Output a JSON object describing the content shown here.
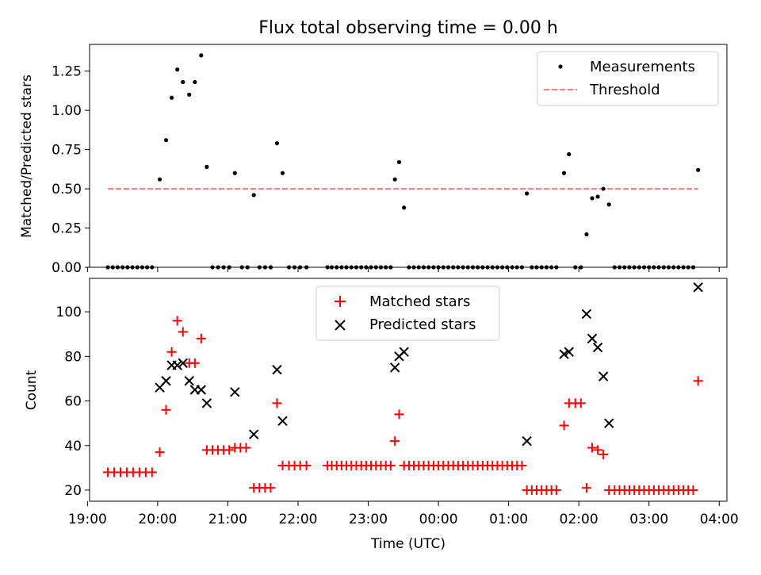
{
  "chart_data": {
    "title": "Flux total observing time = 0.00 h",
    "xlabel": "Time (UTC)",
    "xlim": [
      19.03,
      28.11
    ],
    "x_ticks": [
      {
        "value": 19,
        "label": "19:00"
      },
      {
        "value": 20,
        "label": "20:00"
      },
      {
        "value": 21,
        "label": "21:00"
      },
      {
        "value": 22,
        "label": "22:00"
      },
      {
        "value": 23,
        "label": "23:00"
      },
      {
        "value": 24,
        "label": "00:00"
      },
      {
        "value": 25,
        "label": "01:00"
      },
      {
        "value": 26,
        "label": "02:00"
      },
      {
        "value": 27,
        "label": "03:00"
      },
      {
        "value": 28,
        "label": "04:00"
      }
    ],
    "top_panel": {
      "type": "scatter",
      "ylabel": "Matched/Predicted stars",
      "ylim": [
        0,
        1.42
      ],
      "y_ticks": [
        "0.00",
        "0.25",
        "0.50",
        "0.75",
        "1.00",
        "1.25"
      ],
      "legend": {
        "position": "upper right",
        "entries": [
          "Measurements",
          "Threshold"
        ]
      },
      "threshold": {
        "name": "Threshold",
        "value": 0.5,
        "x_range": [
          19.29,
          27.7
        ],
        "color": "#ff8080"
      },
      "measurements": {
        "name": "Measurements",
        "color": "#000000",
        "points": [
          [
            19.29,
            0
          ],
          [
            19.36,
            0
          ],
          [
            19.43,
            0
          ],
          [
            19.5,
            0
          ],
          [
            19.57,
            0
          ],
          [
            19.64,
            0
          ],
          [
            19.71,
            0
          ],
          [
            19.78,
            0
          ],
          [
            19.85,
            0
          ],
          [
            19.92,
            0
          ],
          [
            20.03,
            0.56
          ],
          [
            20.12,
            0.81
          ],
          [
            20.2,
            1.08
          ],
          [
            20.28,
            1.26
          ],
          [
            20.36,
            1.18
          ],
          [
            20.45,
            1.1
          ],
          [
            20.53,
            1.18
          ],
          [
            20.62,
            1.35
          ],
          [
            20.7,
            0.64
          ],
          [
            20.78,
            0
          ],
          [
            20.86,
            0
          ],
          [
            20.94,
            0
          ],
          [
            21.02,
            0
          ],
          [
            21.1,
            0.6
          ],
          [
            21.2,
            0
          ],
          [
            21.28,
            0
          ],
          [
            21.37,
            0.46
          ],
          [
            21.45,
            0
          ],
          [
            21.53,
            0
          ],
          [
            21.61,
            0
          ],
          [
            21.7,
            0.79
          ],
          [
            21.78,
            0.6
          ],
          [
            21.87,
            0
          ],
          [
            21.95,
            0
          ],
          [
            22.03,
            0
          ],
          [
            22.12,
            0
          ],
          [
            22.42,
            0
          ],
          [
            22.48,
            0
          ],
          [
            22.55,
            0
          ],
          [
            22.62,
            0
          ],
          [
            22.69,
            0
          ],
          [
            22.76,
            0
          ],
          [
            22.83,
            0
          ],
          [
            22.9,
            0
          ],
          [
            22.97,
            0
          ],
          [
            23.04,
            0
          ],
          [
            23.11,
            0
          ],
          [
            23.18,
            0
          ],
          [
            23.25,
            0
          ],
          [
            23.32,
            0
          ],
          [
            23.38,
            0.56
          ],
          [
            23.44,
            0.67
          ],
          [
            23.51,
            0.38
          ],
          [
            23.58,
            0
          ],
          [
            23.65,
            0
          ],
          [
            23.72,
            0
          ],
          [
            23.79,
            0
          ],
          [
            23.86,
            0
          ],
          [
            23.93,
            0
          ],
          [
            24.0,
            0
          ],
          [
            24.07,
            0
          ],
          [
            24.14,
            0
          ],
          [
            24.21,
            0
          ],
          [
            24.28,
            0
          ],
          [
            24.35,
            0
          ],
          [
            24.42,
            0
          ],
          [
            24.49,
            0
          ],
          [
            24.56,
            0
          ],
          [
            24.63,
            0
          ],
          [
            24.7,
            0
          ],
          [
            24.77,
            0
          ],
          [
            24.84,
            0
          ],
          [
            24.91,
            0
          ],
          [
            24.98,
            0
          ],
          [
            25.05,
            0
          ],
          [
            25.12,
            0
          ],
          [
            25.19,
            0
          ],
          [
            25.26,
            0.47
          ],
          [
            25.33,
            0
          ],
          [
            25.4,
            0
          ],
          [
            25.47,
            0
          ],
          [
            25.54,
            0
          ],
          [
            25.61,
            0
          ],
          [
            25.68,
            0
          ],
          [
            25.79,
            0.6
          ],
          [
            25.86,
            0.72
          ],
          [
            25.95,
            0
          ],
          [
            26.03,
            0
          ],
          [
            26.11,
            0.21
          ],
          [
            26.19,
            0.44
          ],
          [
            26.27,
            0.45
          ],
          [
            26.35,
            0.5
          ],
          [
            26.43,
            0.4
          ],
          [
            26.51,
            0
          ],
          [
            26.58,
            0
          ],
          [
            26.65,
            0
          ],
          [
            26.72,
            0
          ],
          [
            26.79,
            0
          ],
          [
            26.86,
            0
          ],
          [
            26.93,
            0
          ],
          [
            27.0,
            0
          ],
          [
            27.07,
            0
          ],
          [
            27.14,
            0
          ],
          [
            27.21,
            0
          ],
          [
            27.28,
            0
          ],
          [
            27.35,
            0
          ],
          [
            27.42,
            0
          ],
          [
            27.49,
            0
          ],
          [
            27.56,
            0
          ],
          [
            27.63,
            0
          ],
          [
            27.7,
            0.62
          ]
        ]
      }
    },
    "bottom_panel": {
      "type": "scatter",
      "ylabel": "Count",
      "ylim": [
        15,
        115
      ],
      "y_ticks": [
        "20",
        "40",
        "60",
        "80",
        "100"
      ],
      "legend": {
        "position": "upper center",
        "entries": [
          "Matched stars",
          "Predicted stars"
        ]
      },
      "series": [
        {
          "name": "Matched stars",
          "marker": "+",
          "color": "#ff0000",
          "points": [
            [
              19.29,
              28
            ],
            [
              19.38,
              28
            ],
            [
              19.47,
              28
            ],
            [
              19.56,
              28
            ],
            [
              19.65,
              28
            ],
            [
              19.74,
              28
            ],
            [
              19.83,
              28
            ],
            [
              19.92,
              28
            ],
            [
              20.03,
              37
            ],
            [
              20.12,
              56
            ],
            [
              20.2,
              82
            ],
            [
              20.28,
              96
            ],
            [
              20.36,
              91
            ],
            [
              20.45,
              77
            ],
            [
              20.53,
              77
            ],
            [
              20.62,
              88
            ],
            [
              20.7,
              38
            ],
            [
              20.78,
              38
            ],
            [
              20.86,
              38
            ],
            [
              20.94,
              38
            ],
            [
              21.02,
              38
            ],
            [
              21.1,
              39
            ],
            [
              21.18,
              39
            ],
            [
              21.26,
              39
            ],
            [
              21.37,
              21
            ],
            [
              21.45,
              21
            ],
            [
              21.53,
              21
            ],
            [
              21.61,
              21
            ],
            [
              21.7,
              59
            ],
            [
              21.78,
              31
            ],
            [
              21.87,
              31
            ],
            [
              21.95,
              31
            ],
            [
              22.03,
              31
            ],
            [
              22.12,
              31
            ],
            [
              22.42,
              31
            ],
            [
              22.48,
              31
            ],
            [
              22.55,
              31
            ],
            [
              22.62,
              31
            ],
            [
              22.69,
              31
            ],
            [
              22.76,
              31
            ],
            [
              22.83,
              31
            ],
            [
              22.9,
              31
            ],
            [
              22.97,
              31
            ],
            [
              23.04,
              31
            ],
            [
              23.11,
              31
            ],
            [
              23.18,
              31
            ],
            [
              23.25,
              31
            ],
            [
              23.32,
              31
            ],
            [
              23.38,
              42
            ],
            [
              23.44,
              54
            ],
            [
              23.51,
              31
            ],
            [
              23.58,
              31
            ],
            [
              23.65,
              31
            ],
            [
              23.72,
              31
            ],
            [
              23.79,
              31
            ],
            [
              23.86,
              31
            ],
            [
              23.93,
              31
            ],
            [
              24.0,
              31
            ],
            [
              24.07,
              31
            ],
            [
              24.14,
              31
            ],
            [
              24.21,
              31
            ],
            [
              24.28,
              31
            ],
            [
              24.35,
              31
            ],
            [
              24.42,
              31
            ],
            [
              24.49,
              31
            ],
            [
              24.56,
              31
            ],
            [
              24.63,
              31
            ],
            [
              24.7,
              31
            ],
            [
              24.77,
              31
            ],
            [
              24.84,
              31
            ],
            [
              24.91,
              31
            ],
            [
              24.98,
              31
            ],
            [
              25.05,
              31
            ],
            [
              25.12,
              31
            ],
            [
              25.19,
              31
            ],
            [
              25.26,
              20
            ],
            [
              25.33,
              20
            ],
            [
              25.4,
              20
            ],
            [
              25.47,
              20
            ],
            [
              25.54,
              20
            ],
            [
              25.61,
              20
            ],
            [
              25.68,
              20
            ],
            [
              25.79,
              49
            ],
            [
              25.86,
              59
            ],
            [
              25.95,
              59
            ],
            [
              26.03,
              59
            ],
            [
              26.11,
              21
            ],
            [
              26.19,
              39
            ],
            [
              26.27,
              38
            ],
            [
              26.35,
              36
            ],
            [
              26.43,
              20
            ],
            [
              26.51,
              20
            ],
            [
              26.58,
              20
            ],
            [
              26.65,
              20
            ],
            [
              26.72,
              20
            ],
            [
              26.79,
              20
            ],
            [
              26.86,
              20
            ],
            [
              26.93,
              20
            ],
            [
              27.0,
              20
            ],
            [
              27.07,
              20
            ],
            [
              27.14,
              20
            ],
            [
              27.21,
              20
            ],
            [
              27.28,
              20
            ],
            [
              27.35,
              20
            ],
            [
              27.42,
              20
            ],
            [
              27.49,
              20
            ],
            [
              27.56,
              20
            ],
            [
              27.63,
              20
            ],
            [
              27.7,
              69
            ]
          ]
        },
        {
          "name": "Predicted stars",
          "marker": "x",
          "color": "#000000",
          "points": [
            [
              20.03,
              66
            ],
            [
              20.12,
              69
            ],
            [
              20.2,
              76
            ],
            [
              20.28,
              76
            ],
            [
              20.36,
              77
            ],
            [
              20.45,
              69
            ],
            [
              20.53,
              65
            ],
            [
              20.62,
              65
            ],
            [
              20.7,
              59
            ],
            [
              21.1,
              64
            ],
            [
              21.37,
              45
            ],
            [
              21.7,
              74
            ],
            [
              21.78,
              51
            ],
            [
              23.38,
              75
            ],
            [
              23.44,
              80
            ],
            [
              23.51,
              82
            ],
            [
              25.26,
              42
            ],
            [
              25.79,
              81
            ],
            [
              25.86,
              82
            ],
            [
              26.11,
              99
            ],
            [
              26.19,
              88
            ],
            [
              26.27,
              84
            ],
            [
              26.35,
              71
            ],
            [
              26.43,
              50
            ],
            [
              27.7,
              111
            ]
          ]
        }
      ]
    }
  }
}
